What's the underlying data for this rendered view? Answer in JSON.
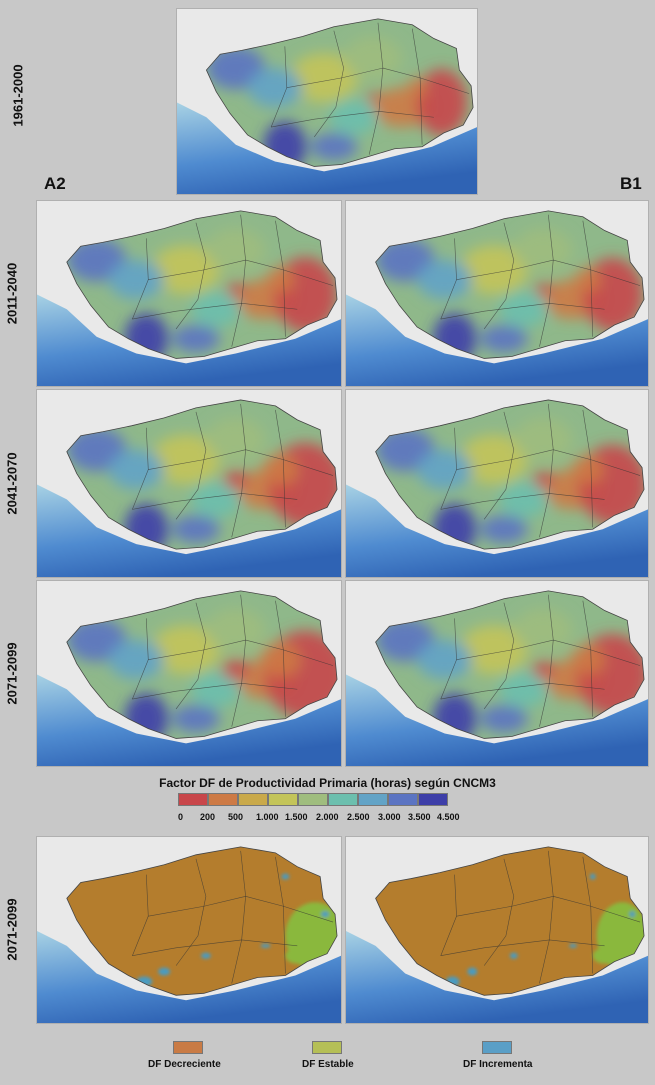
{
  "labels": {
    "baseline_period": "1961-2000",
    "scenario_a": "A2",
    "scenario_b": "B1",
    "period_1": "2011-2040",
    "period_2": "2041-2070",
    "period_3": "2071-2099",
    "period_4": "2071-2099"
  },
  "continuous_legend": {
    "title": "Factor DF de Productividad Primaria (horas) según CNCM3",
    "ticks": [
      "0",
      "200",
      "500",
      "1.000",
      "1.500",
      "2.000",
      "2.500",
      "3.000",
      "3.500",
      "4.500"
    ],
    "colors": [
      "#c8464a",
      "#cd7a45",
      "#c9a94a",
      "#c3c459",
      "#9fbd7e",
      "#6cbfae",
      "#62a3c6",
      "#5b74c2",
      "#3d3ea8"
    ]
  },
  "category_legend": [
    {
      "label": "DF Decreciente",
      "color": "#c97b45"
    },
    {
      "label": "DF Estable",
      "color": "#b5bf56"
    },
    {
      "label": "DF Incrementa",
      "color": "#5a9fc7"
    }
  ],
  "map_colors": {
    "sea_light": "#a8d2e4",
    "sea_deep": "#2f63b4",
    "land_outside": "#e9e9e9",
    "change_base": "#b47d2d",
    "change_stable": "#8ab83c",
    "change_increase": "#4a9bc1"
  }
}
